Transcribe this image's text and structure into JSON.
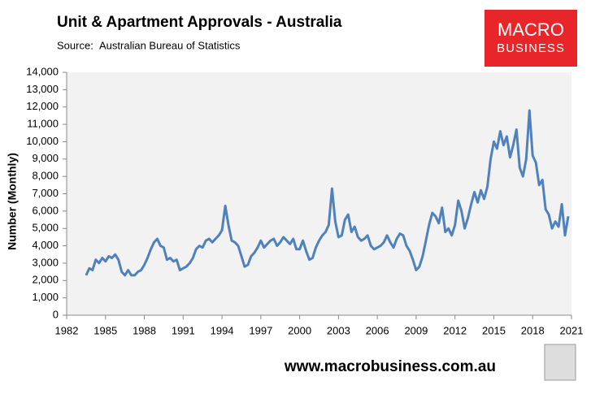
{
  "chart_data": {
    "type": "line",
    "title": "Unit & Apartment Approvals - Australia",
    "source_label": "Source:",
    "source": "Australian Bureau of Statistics",
    "logo": [
      "MACRO",
      "BUSINESS"
    ],
    "footer": "www.macrobusiness.com.au",
    "y_label": "Number (Monthly)",
    "xlim": [
      1982,
      2021
    ],
    "xticks": [
      1982,
      1985,
      1988,
      1991,
      1994,
      1997,
      2000,
      2003,
      2006,
      2009,
      2012,
      2015,
      2018,
      2021
    ],
    "ylim": [
      0,
      14000
    ],
    "yticks": [
      0,
      {
        "value": 1000,
        "label": "1,000"
      },
      {
        "value": 2000,
        "label": "2,000"
      },
      {
        "value": 3000,
        "label": "3,000"
      },
      {
        "value": 4000,
        "label": "4,000"
      },
      {
        "value": 5000,
        "label": "5,000"
      },
      {
        "value": 6000,
        "label": "6,000"
      },
      {
        "value": 7000,
        "label": "7,000"
      },
      {
        "value": 8000,
        "label": "8,000"
      },
      {
        "value": 9000,
        "label": "9,000"
      },
      {
        "value": 10000,
        "label": "10,000"
      },
      {
        "value": 11000,
        "label": "11,000"
      },
      {
        "value": 12000,
        "label": "12,000"
      },
      {
        "value": 13000,
        "label": "13,000"
      },
      {
        "value": 14000,
        "label": "14,000"
      }
    ],
    "x": [
      1983.5,
      1983.75,
      1984,
      1984.25,
      1984.5,
      1984.75,
      1985,
      1985.25,
      1985.5,
      1985.75,
      1986,
      1986.25,
      1986.5,
      1986.75,
      1987,
      1987.25,
      1987.5,
      1987.75,
      1988,
      1988.25,
      1988.5,
      1988.75,
      1989,
      1989.25,
      1989.5,
      1989.75,
      1990,
      1990.25,
      1990.5,
      1990.75,
      1991,
      1991.25,
      1991.5,
      1991.75,
      1992,
      1992.25,
      1992.5,
      1992.75,
      1993,
      1993.25,
      1993.5,
      1993.75,
      1994,
      1994.25,
      1994.5,
      1994.75,
      1995,
      1995.25,
      1995.5,
      1995.75,
      1996,
      1996.25,
      1996.5,
      1996.75,
      1997,
      1997.25,
      1997.5,
      1997.75,
      1998,
      1998.25,
      1998.5,
      1998.75,
      1999,
      1999.25,
      1999.5,
      1999.75,
      2000,
      2000.25,
      2000.5,
      2000.75,
      2001,
      2001.25,
      2001.5,
      2001.75,
      2002,
      2002.25,
      2002.5,
      2002.75,
      2003,
      2003.25,
      2003.5,
      2003.75,
      2004,
      2004.25,
      2004.5,
      2004.75,
      2005,
      2005.25,
      2005.5,
      2005.75,
      2006,
      2006.25,
      2006.5,
      2006.75,
      2007,
      2007.25,
      2007.5,
      2007.75,
      2008,
      2008.25,
      2008.5,
      2008.75,
      2009,
      2009.25,
      2009.5,
      2009.75,
      2010,
      2010.25,
      2010.5,
      2010.75,
      2011,
      2011.25,
      2011.5,
      2011.75,
      2012,
      2012.25,
      2012.5,
      2012.75,
      2013,
      2013.25,
      2013.5,
      2013.75,
      2014,
      2014.25,
      2014.5,
      2014.75,
      2015,
      2015.25,
      2015.5,
      2015.75,
      2016,
      2016.25,
      2016.5,
      2016.75,
      2017,
      2017.25,
      2017.5,
      2017.75,
      2018,
      2018.25,
      2018.5,
      2018.75,
      2019,
      2019.25,
      2019.5,
      2019.75,
      2020,
      2020.25,
      2020.5,
      2020.75
    ],
    "series": [
      {
        "color": "#4f81bd",
        "values": [
          2300,
          2700,
          2600,
          3200,
          3000,
          3300,
          3100,
          3400,
          3300,
          3500,
          3200,
          2500,
          2300,
          2600,
          2300,
          2300,
          2500,
          2600,
          2900,
          3300,
          3800,
          4200,
          4400,
          4000,
          3900,
          3200,
          3300,
          3100,
          3200,
          2600,
          2700,
          2800,
          3000,
          3300,
          3800,
          4000,
          3900,
          4300,
          4400,
          4200,
          4400,
          4600,
          4900,
          6300,
          5200,
          4300,
          4200,
          4000,
          3400,
          2800,
          2900,
          3400,
          3600,
          3900,
          4300,
          3900,
          4100,
          4300,
          4400,
          4000,
          4200,
          4500,
          4300,
          4100,
          4400,
          3800,
          3800,
          4300,
          3700,
          3200,
          3300,
          3900,
          4300,
          4600,
          4800,
          5200,
          7300,
          5400,
          4500,
          4600,
          5500,
          5800,
          4800,
          5100,
          4500,
          4300,
          4400,
          4600,
          4000,
          3800,
          3900,
          4000,
          4200,
          4600,
          4200,
          3900,
          4400,
          4700,
          4600,
          4000,
          3700,
          3200,
          2600,
          2800,
          3400,
          4300,
          5200,
          5900,
          5700,
          5300,
          6200,
          4800,
          5000,
          4600,
          5200,
          6600,
          6000,
          5000,
          5600,
          6400,
          7100,
          6500,
          7200,
          6700,
          7400,
          9000,
          10000,
          9600,
          10600,
          9800,
          10300,
          9100,
          9800,
          10700,
          8500,
          8000,
          9000,
          11800,
          9200,
          8800,
          7500,
          7800,
          6100,
          5800,
          5000,
          5400,
          5100,
          6400,
          4600,
          5700
        ]
      }
    ]
  }
}
